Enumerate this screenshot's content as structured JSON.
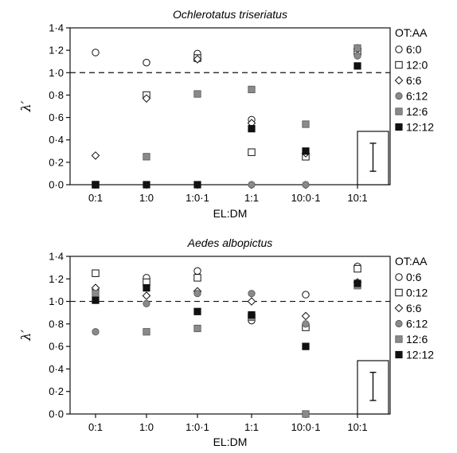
{
  "chart_data": [
    {
      "type": "scatter",
      "title": "Ochlerotatus triseriatus",
      "xlabel": "EL:DM",
      "ylabel": "λ′",
      "categories": [
        "0:1",
        "1:0",
        "1:0·1",
        "1:1",
        "10:0·1",
        "10:1"
      ],
      "ylim": [
        0,
        1.4
      ],
      "yticks": [
        "0·0",
        "0·2",
        "0·4",
        "0·6",
        "0·8",
        "1·0",
        "1·2",
        "1·4"
      ],
      "reference_line": 1.0,
      "legend_title": "OT:AA",
      "legend_position": "right",
      "error_bar": {
        "low": 0.12,
        "high": 0.37
      },
      "series": [
        {
          "name": "6:0",
          "marker": "circle-open",
          "values": [
            1.18,
            1.09,
            1.17,
            0.58,
            null,
            1.22
          ]
        },
        {
          "name": "12:0",
          "marker": "square-open",
          "values": [
            0.0,
            0.8,
            1.13,
            0.29,
            0.25,
            1.19
          ]
        },
        {
          "name": "6:6",
          "marker": "diamond-open",
          "values": [
            0.26,
            0.77,
            1.12,
            0.55,
            0.28,
            1.21
          ]
        },
        {
          "name": "6:12",
          "marker": "circle-gray",
          "values": [
            0.0,
            0.0,
            0.0,
            0.0,
            0.0,
            1.15
          ]
        },
        {
          "name": "12:6",
          "marker": "square-gray",
          "values": [
            0.0,
            0.25,
            0.81,
            0.85,
            0.54,
            1.22
          ]
        },
        {
          "name": "12:12",
          "marker": "square-black",
          "values": [
            0.0,
            0.0,
            0.0,
            0.5,
            0.3,
            1.06
          ]
        }
      ]
    },
    {
      "type": "scatter",
      "title": "Aedes albopictus",
      "xlabel": "EL:DM",
      "ylabel": "λ′",
      "categories": [
        "0:1",
        "1:0",
        "1:0·1",
        "1:1",
        "10:0·1",
        "10:1"
      ],
      "ylim": [
        0,
        1.4
      ],
      "yticks": [
        "0·0",
        "0·2",
        "0·4",
        "0·6",
        "0·8",
        "1·0",
        "1·2",
        "1·4"
      ],
      "reference_line": 1.0,
      "legend_title": "OT:AA",
      "legend_position": "right",
      "error_bar": {
        "low": 0.12,
        "high": 0.37
      },
      "series": [
        {
          "name": "0:6",
          "marker": "circle-open",
          "values": [
            1.1,
            1.21,
            1.27,
            0.83,
            1.06,
            1.31
          ]
        },
        {
          "name": "0:12",
          "marker": "square-open",
          "values": [
            1.25,
            1.17,
            1.21,
            0.86,
            0.77,
            1.29
          ]
        },
        {
          "name": "6:6",
          "marker": "diamond-open",
          "values": [
            1.12,
            1.05,
            1.09,
            1.0,
            0.87,
            1.17
          ]
        },
        {
          "name": "6:12",
          "marker": "circle-gray",
          "values": [
            0.73,
            0.98,
            1.07,
            1.07,
            0.8,
            1.15
          ]
        },
        {
          "name": "12:6",
          "marker": "square-gray",
          "values": [
            1.07,
            0.73,
            0.76,
            0.86,
            0.0,
            1.14
          ]
        },
        {
          "name": "12:12",
          "marker": "square-black",
          "values": [
            1.01,
            1.12,
            0.91,
            0.88,
            0.6,
            1.16
          ]
        }
      ]
    }
  ],
  "colors": {
    "open_fill": "#ffffff",
    "gray_fill": "#8a8a8a",
    "black_fill": "#111111",
    "stroke": "#111111"
  }
}
